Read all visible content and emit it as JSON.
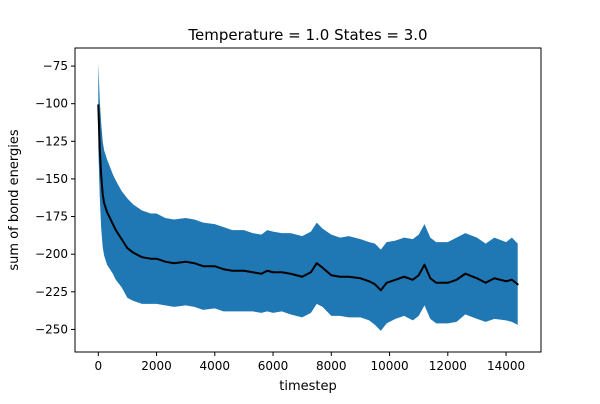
{
  "chart_data": {
    "type": "line",
    "title": "Temperature = 1.0 States = 3.0",
    "xlabel": "timestep",
    "ylabel": "sum of bond energies",
    "xlim": [
      -800,
      15200
    ],
    "ylim": [
      -265,
      -63
    ],
    "xticks": [
      0,
      2000,
      4000,
      6000,
      8000,
      10000,
      12000,
      14000
    ],
    "yticks": [
      -250,
      -225,
      -200,
      -175,
      -150,
      -125,
      -100,
      -75
    ],
    "tick_labels": {
      "x": [
        "0",
        "2000",
        "4000",
        "6000",
        "8000",
        "10000",
        "12000",
        "14000"
      ],
      "y": [
        "−250",
        "−225",
        "−200",
        "−175",
        "−150",
        "−125",
        "−100",
        "−75"
      ]
    },
    "grid": false,
    "legend": "none",
    "colors": {
      "band": "#1f77b4",
      "mean": "#000000"
    },
    "series": [
      {
        "role": "mean",
        "x": [
          0,
          50,
          100,
          150,
          200,
          300,
          400,
          500,
          600,
          800,
          1000,
          1200,
          1500,
          1800,
          2000,
          2300,
          2600,
          3000,
          3300,
          3600,
          4000,
          4300,
          4600,
          5000,
          5300,
          5600,
          5800,
          6000,
          6300,
          6600,
          7000,
          7300,
          7500,
          7700,
          8000,
          8300,
          8600,
          9000,
          9300,
          9500,
          9700,
          9900,
          10200,
          10500,
          10800,
          11000,
          11200,
          11400,
          11600,
          12000,
          12300,
          12600,
          13000,
          13300,
          13600,
          14000,
          14200,
          14400
        ],
        "y": [
          -101,
          -130,
          -148,
          -160,
          -166,
          -172,
          -176,
          -180,
          -184,
          -190,
          -196,
          -199,
          -202,
          -203,
          -203,
          -205,
          -206,
          -205,
          -206,
          -208,
          -208,
          -210,
          -211,
          -211,
          -212,
          -213,
          -211,
          -212,
          -212,
          -213,
          -215,
          -212,
          -206,
          -209,
          -214,
          -215,
          -215,
          -216,
          -218,
          -220,
          -224,
          -219,
          -217,
          -215,
          -217,
          -214,
          -207,
          -216,
          -219,
          -219,
          -217,
          -213,
          -216,
          -219,
          -216,
          -218,
          -217,
          -220
        ]
      },
      {
        "role": "upper",
        "x": [
          0,
          50,
          100,
          150,
          200,
          300,
          400,
          500,
          600,
          800,
          1000,
          1200,
          1500,
          1800,
          2000,
          2300,
          2600,
          3000,
          3300,
          3600,
          4000,
          4300,
          4600,
          5000,
          5300,
          5600,
          5800,
          6000,
          6300,
          6600,
          7000,
          7300,
          7500,
          7700,
          8000,
          8300,
          8600,
          9000,
          9300,
          9500,
          9700,
          9900,
          10200,
          10500,
          10800,
          11000,
          11200,
          11400,
          11600,
          12000,
          12300,
          12600,
          13000,
          13300,
          13600,
          14000,
          14200,
          14400
        ],
        "y": [
          -73,
          -98,
          -113,
          -125,
          -131,
          -137,
          -142,
          -147,
          -151,
          -158,
          -163,
          -167,
          -171,
          -173,
          -173,
          -176,
          -177,
          -176,
          -177,
          -179,
          -180,
          -182,
          -184,
          -184,
          -186,
          -187,
          -184,
          -185,
          -186,
          -186,
          -188,
          -185,
          -179,
          -183,
          -187,
          -189,
          -188,
          -190,
          -192,
          -193,
          -197,
          -192,
          -191,
          -189,
          -190,
          -187,
          -180,
          -189,
          -192,
          -192,
          -189,
          -186,
          -189,
          -193,
          -189,
          -192,
          -189,
          -193
        ]
      },
      {
        "role": "lower",
        "x": [
          0,
          50,
          100,
          150,
          200,
          300,
          400,
          500,
          600,
          800,
          1000,
          1200,
          1500,
          1800,
          2000,
          2300,
          2600,
          3000,
          3300,
          3600,
          4000,
          4300,
          4600,
          5000,
          5300,
          5600,
          5800,
          6000,
          6300,
          6600,
          7000,
          7300,
          7500,
          7700,
          8000,
          8300,
          8600,
          9000,
          9300,
          9500,
          9700,
          9900,
          10200,
          10500,
          10800,
          11000,
          11200,
          11400,
          11600,
          12000,
          12300,
          12600,
          13000,
          13300,
          13600,
          14000,
          14200,
          14400
        ],
        "y": [
          -129,
          -162,
          -183,
          -195,
          -201,
          -207,
          -210,
          -213,
          -217,
          -222,
          -229,
          -231,
          -233,
          -233,
          -233,
          -234,
          -235,
          -234,
          -235,
          -237,
          -236,
          -238,
          -238,
          -238,
          -238,
          -239,
          -238,
          -239,
          -238,
          -240,
          -242,
          -239,
          -233,
          -235,
          -241,
          -241,
          -242,
          -242,
          -244,
          -247,
          -251,
          -246,
          -243,
          -241,
          -244,
          -241,
          -234,
          -243,
          -246,
          -246,
          -245,
          -240,
          -243,
          -245,
          -243,
          -244,
          -245,
          -247
        ]
      }
    ]
  }
}
